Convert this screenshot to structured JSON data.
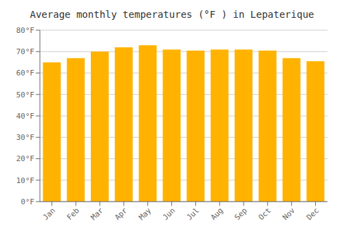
{
  "chart_data": {
    "type": "bar",
    "title": "Average monthly temperatures (°F ) in Lepaterique",
    "categories": [
      "Jan",
      "Feb",
      "Mar",
      "Apr",
      "May",
      "Jun",
      "Jul",
      "Aug",
      "Sep",
      "Oct",
      "Nov",
      "Dec"
    ],
    "values": [
      65,
      67,
      70,
      72,
      73,
      71,
      70.5,
      71,
      71,
      70.5,
      67,
      65.5
    ],
    "color": "#FFB300",
    "ylim": [
      0,
      80
    ],
    "yticks": [
      {
        "value": 0,
        "label": "0°F"
      },
      {
        "value": 10,
        "label": "10°F"
      },
      {
        "value": 20,
        "label": "20°F"
      },
      {
        "value": 30,
        "label": "30°F"
      },
      {
        "value": 40,
        "label": "40°F"
      },
      {
        "value": 50,
        "label": "50°F"
      },
      {
        "value": 60,
        "label": "60°F"
      },
      {
        "value": 70,
        "label": "70°F"
      },
      {
        "value": 80,
        "label": "80°F"
      }
    ],
    "grid": true
  }
}
